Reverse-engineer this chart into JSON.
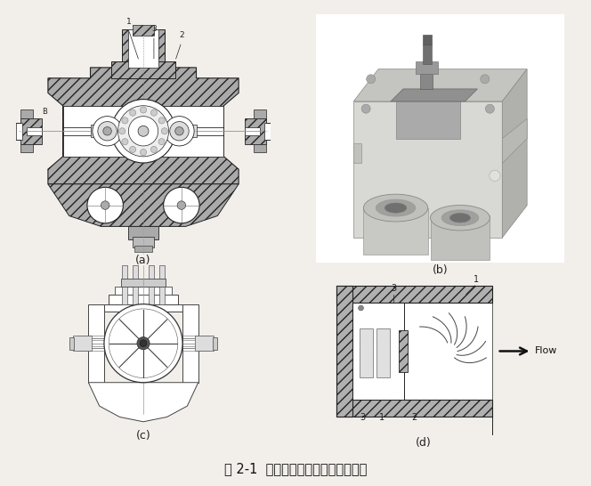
{
  "figure_title": "图 2-1  切向渦轮式流量传感器结构图",
  "labels": [
    "(a)",
    "(b)",
    "(c)",
    "(d)"
  ],
  "bg_color": "#f2efea",
  "panel_bg": "#ffffff",
  "hatch_color": "#555555",
  "line_color": "#222222",
  "fig_width": 6.64,
  "fig_height": 5.46,
  "caption_fontsize": 10.5,
  "label_fontsize": 9,
  "flow_text": "Flow"
}
